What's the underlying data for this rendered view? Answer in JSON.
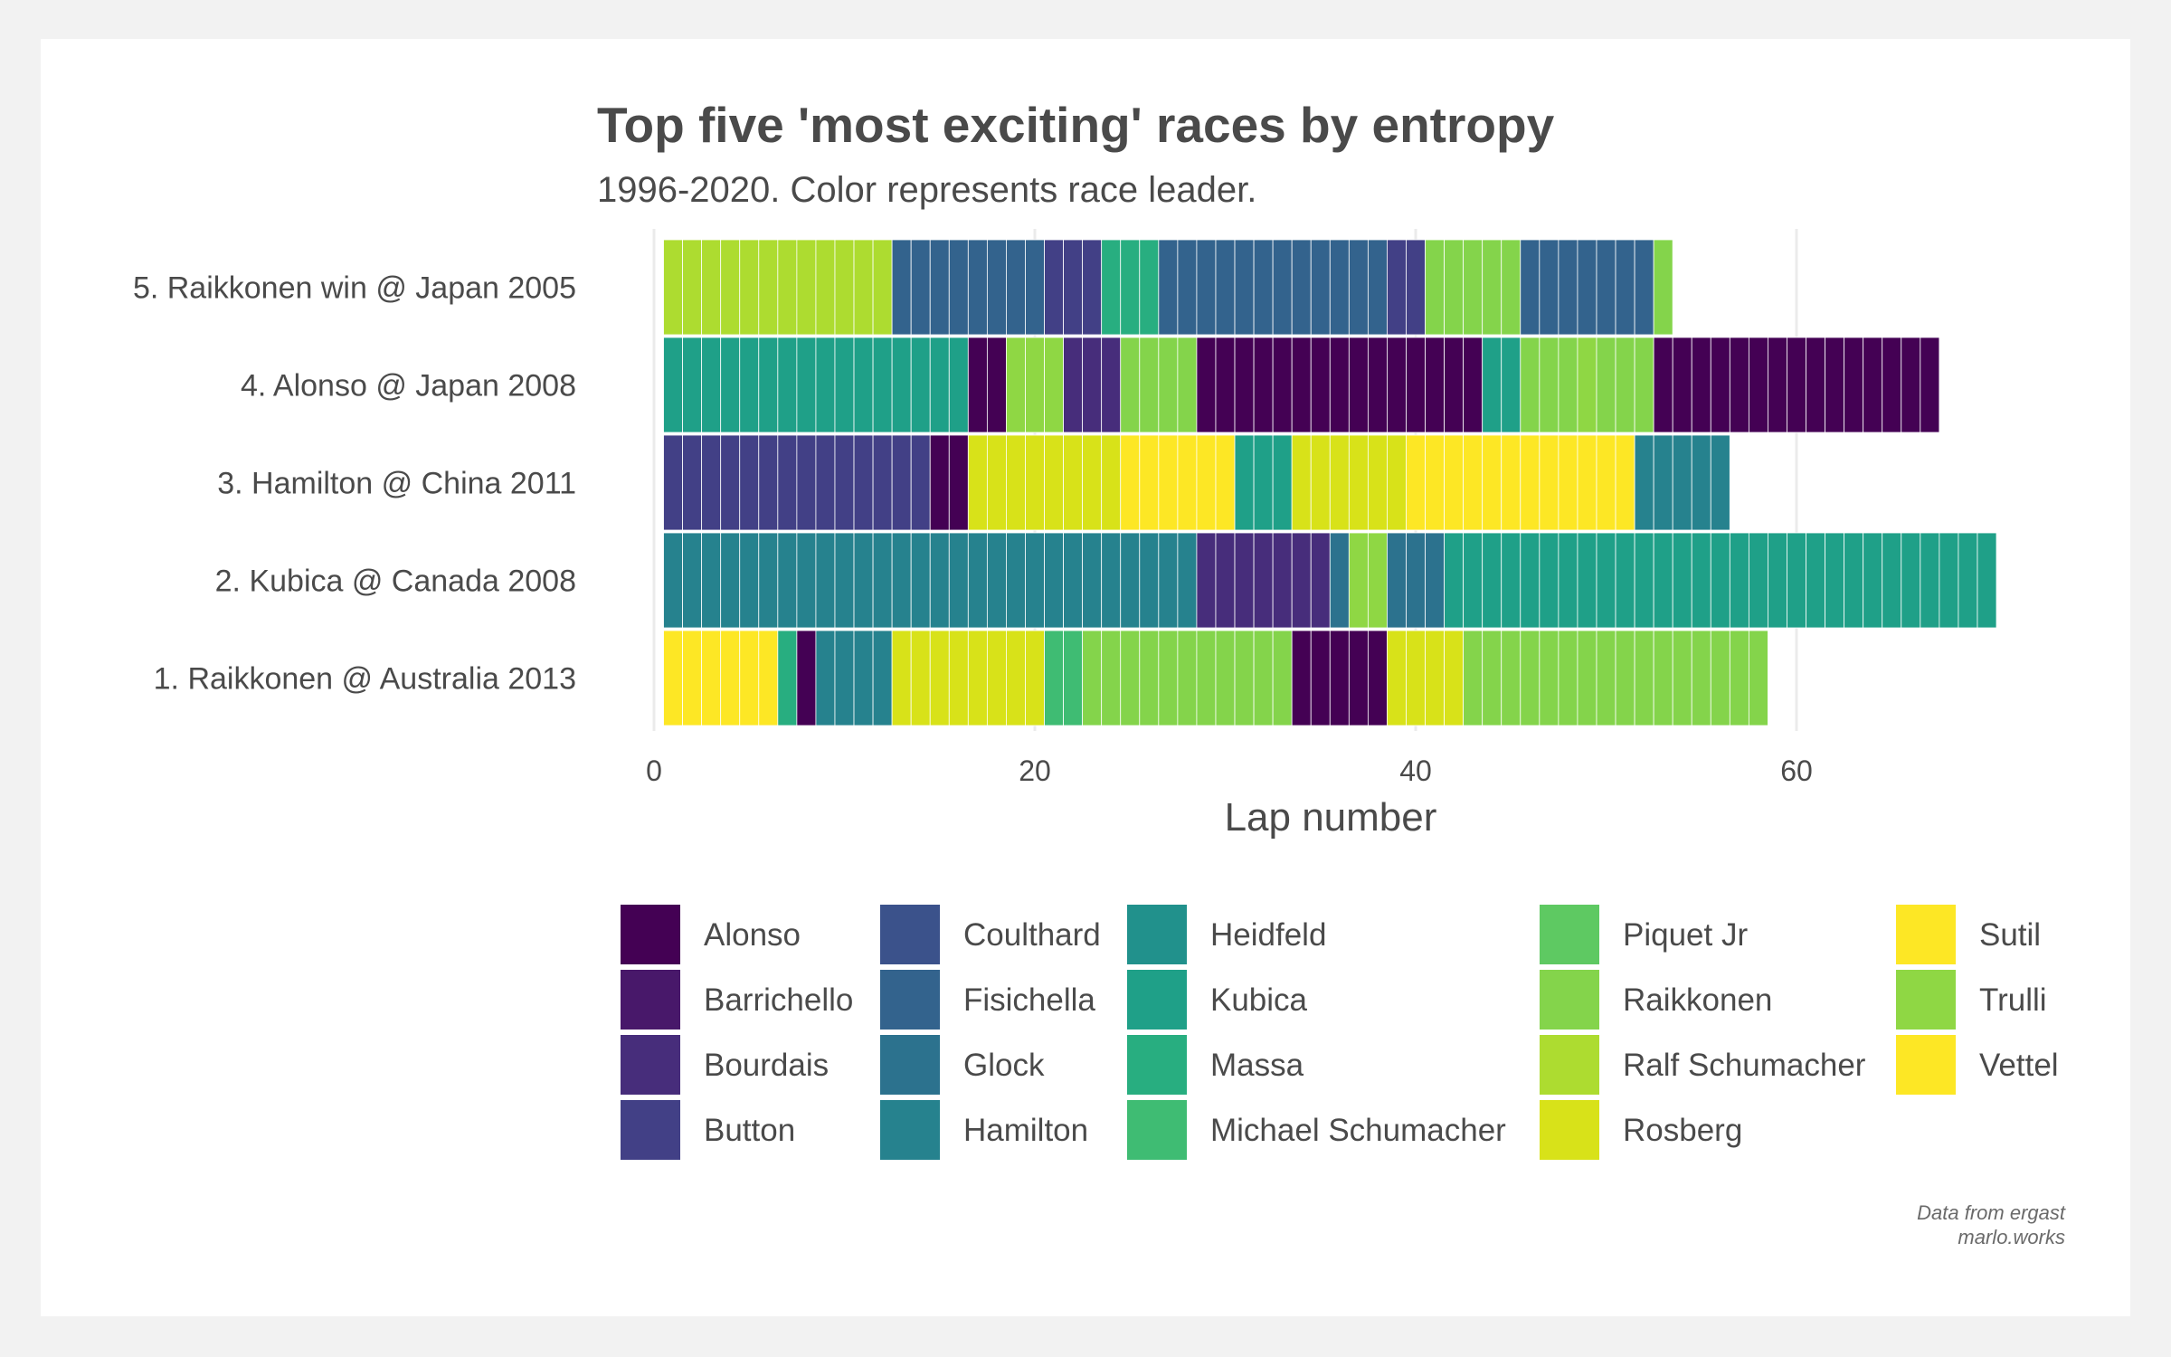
{
  "chart_data": {
    "type": "bar",
    "title": "Top five 'most exciting' races by entropy",
    "subtitle": "1996-2020. Color represents race leader.",
    "xlabel": "Lap number",
    "ylabel": "",
    "xlim": [
      0,
      70
    ],
    "x_ticks": [
      0,
      20,
      40,
      60
    ],
    "grid": true,
    "legend_position": "bottom",
    "drivers": [
      {
        "name": "Alonso",
        "color": "#440154"
      },
      {
        "name": "Barrichello",
        "color": "#48186a"
      },
      {
        "name": "Bourdais",
        "color": "#472d7b"
      },
      {
        "name": "Button",
        "color": "#424086"
      },
      {
        "name": "Coulthard",
        "color": "#3b528b"
      },
      {
        "name": "Fisichella",
        "color": "#33638d"
      },
      {
        "name": "Glock",
        "color": "#2c728e"
      },
      {
        "name": "Hamilton",
        "color": "#26828e"
      },
      {
        "name": "Heidfeld",
        "color": "#21918c"
      },
      {
        "name": "Kubica",
        "color": "#1fa088"
      },
      {
        "name": "Massa",
        "color": "#28ae80"
      },
      {
        "name": "Michael Schumacher",
        "color": "#3fbc73"
      },
      {
        "name": "Piquet Jr",
        "color": "#5ec962"
      },
      {
        "name": "Raikkonen",
        "color": "#84d44b"
      },
      {
        "name": "Ralf Schumacher",
        "color": "#addc30"
      },
      {
        "name": "Rosberg",
        "color": "#d8e219"
      },
      {
        "name": "Sutil",
        "color": "#fde725"
      },
      {
        "name": "Trulli",
        "color": "#8fd744"
      },
      {
        "name": "Vettel",
        "color": "#fde725"
      }
    ],
    "legend_columns": [
      [
        "Alonso",
        "Barrichello",
        "Bourdais",
        "Button"
      ],
      [
        "Coulthard",
        "Fisichella",
        "Glock",
        "Hamilton"
      ],
      [
        "Heidfeld",
        "Kubica",
        "Massa",
        "Michael Schumacher"
      ],
      [
        "Piquet Jr",
        "Raikkonen",
        "Ralf Schumacher",
        "Rosberg"
      ],
      [
        "Sutil",
        "Trulli",
        "Vettel"
      ]
    ],
    "races": [
      {
        "label": "5. Raikkonen win @ Japan 2005",
        "segments": [
          {
            "leader": "Ralf Schumacher",
            "from": 1,
            "to": 12
          },
          {
            "leader": "Fisichella",
            "from": 13,
            "to": 20
          },
          {
            "leader": "Button",
            "from": 21,
            "to": 23
          },
          {
            "leader": "Massa",
            "from": 24,
            "to": 26
          },
          {
            "leader": "Fisichella",
            "from": 27,
            "to": 38
          },
          {
            "leader": "Button",
            "from": 39,
            "to": 40
          },
          {
            "leader": "Raikkonen",
            "from": 41,
            "to": 45
          },
          {
            "leader": "Fisichella",
            "from": 46,
            "to": 52
          },
          {
            "leader": "Raikkonen",
            "from": 53,
            "to": 53
          }
        ]
      },
      {
        "label": "4. Alonso @ Japan 2008",
        "segments": [
          {
            "leader": "Kubica",
            "from": 1,
            "to": 16
          },
          {
            "leader": "Alonso",
            "from": 17,
            "to": 18
          },
          {
            "leader": "Trulli",
            "from": 19,
            "to": 21
          },
          {
            "leader": "Bourdais",
            "from": 22,
            "to": 24
          },
          {
            "leader": "Raikkonen",
            "from": 25,
            "to": 28
          },
          {
            "leader": "Alonso",
            "from": 29,
            "to": 43
          },
          {
            "leader": "Kubica",
            "from": 44,
            "to": 45
          },
          {
            "leader": "Raikkonen",
            "from": 46,
            "to": 48
          },
          {
            "leader": "Trulli",
            "from": 49,
            "to": 49
          },
          {
            "leader": "Raikkonen",
            "from": 50,
            "to": 52
          },
          {
            "leader": "Alonso",
            "from": 53,
            "to": 67
          }
        ]
      },
      {
        "label": "3. Hamilton @ China 2011",
        "segments": [
          {
            "leader": "Button",
            "from": 1,
            "to": 14
          },
          {
            "leader": "Alonso",
            "from": 15,
            "to": 16
          },
          {
            "leader": "Rosberg",
            "from": 17,
            "to": 24
          },
          {
            "leader": "Vettel",
            "from": 25,
            "to": 30
          },
          {
            "leader": "Kubica",
            "from": 31,
            "to": 33
          },
          {
            "leader": "Rosberg",
            "from": 34,
            "to": 39
          },
          {
            "leader": "Vettel",
            "from": 40,
            "to": 51
          },
          {
            "leader": "Hamilton",
            "from": 52,
            "to": 56
          }
        ]
      },
      {
        "label": "2. Kubica @ Canada 2008",
        "segments": [
          {
            "leader": "Hamilton",
            "from": 1,
            "to": 28
          },
          {
            "leader": "Bourdais",
            "from": 29,
            "to": 35
          },
          {
            "leader": "Glock",
            "from": 36,
            "to": 36
          },
          {
            "leader": "Trulli",
            "from": 37,
            "to": 38
          },
          {
            "leader": "Glock",
            "from": 39,
            "to": 41
          },
          {
            "leader": "Kubica",
            "from": 42,
            "to": 70
          }
        ]
      },
      {
        "label": "1. Raikkonen @ Australia 2013",
        "segments": [
          {
            "leader": "Vettel",
            "from": 1,
            "to": 6
          },
          {
            "leader": "Massa",
            "from": 7,
            "to": 7
          },
          {
            "leader": "Alonso",
            "from": 8,
            "to": 8
          },
          {
            "leader": "Hamilton",
            "from": 9,
            "to": 12
          },
          {
            "leader": "Rosberg",
            "from": 13,
            "to": 20
          },
          {
            "leader": "Michael Schumacher",
            "from": 21,
            "to": 22
          },
          {
            "leader": "Raikkonen",
            "from": 23,
            "to": 33
          },
          {
            "leader": "Alonso",
            "from": 34,
            "to": 38
          },
          {
            "leader": "Rosberg",
            "from": 39,
            "to": 42
          },
          {
            "leader": "Raikkonen",
            "from": 43,
            "to": 58
          }
        ]
      }
    ]
  },
  "caption": {
    "line1": "Data from ergast",
    "line2": "marlo.works"
  }
}
